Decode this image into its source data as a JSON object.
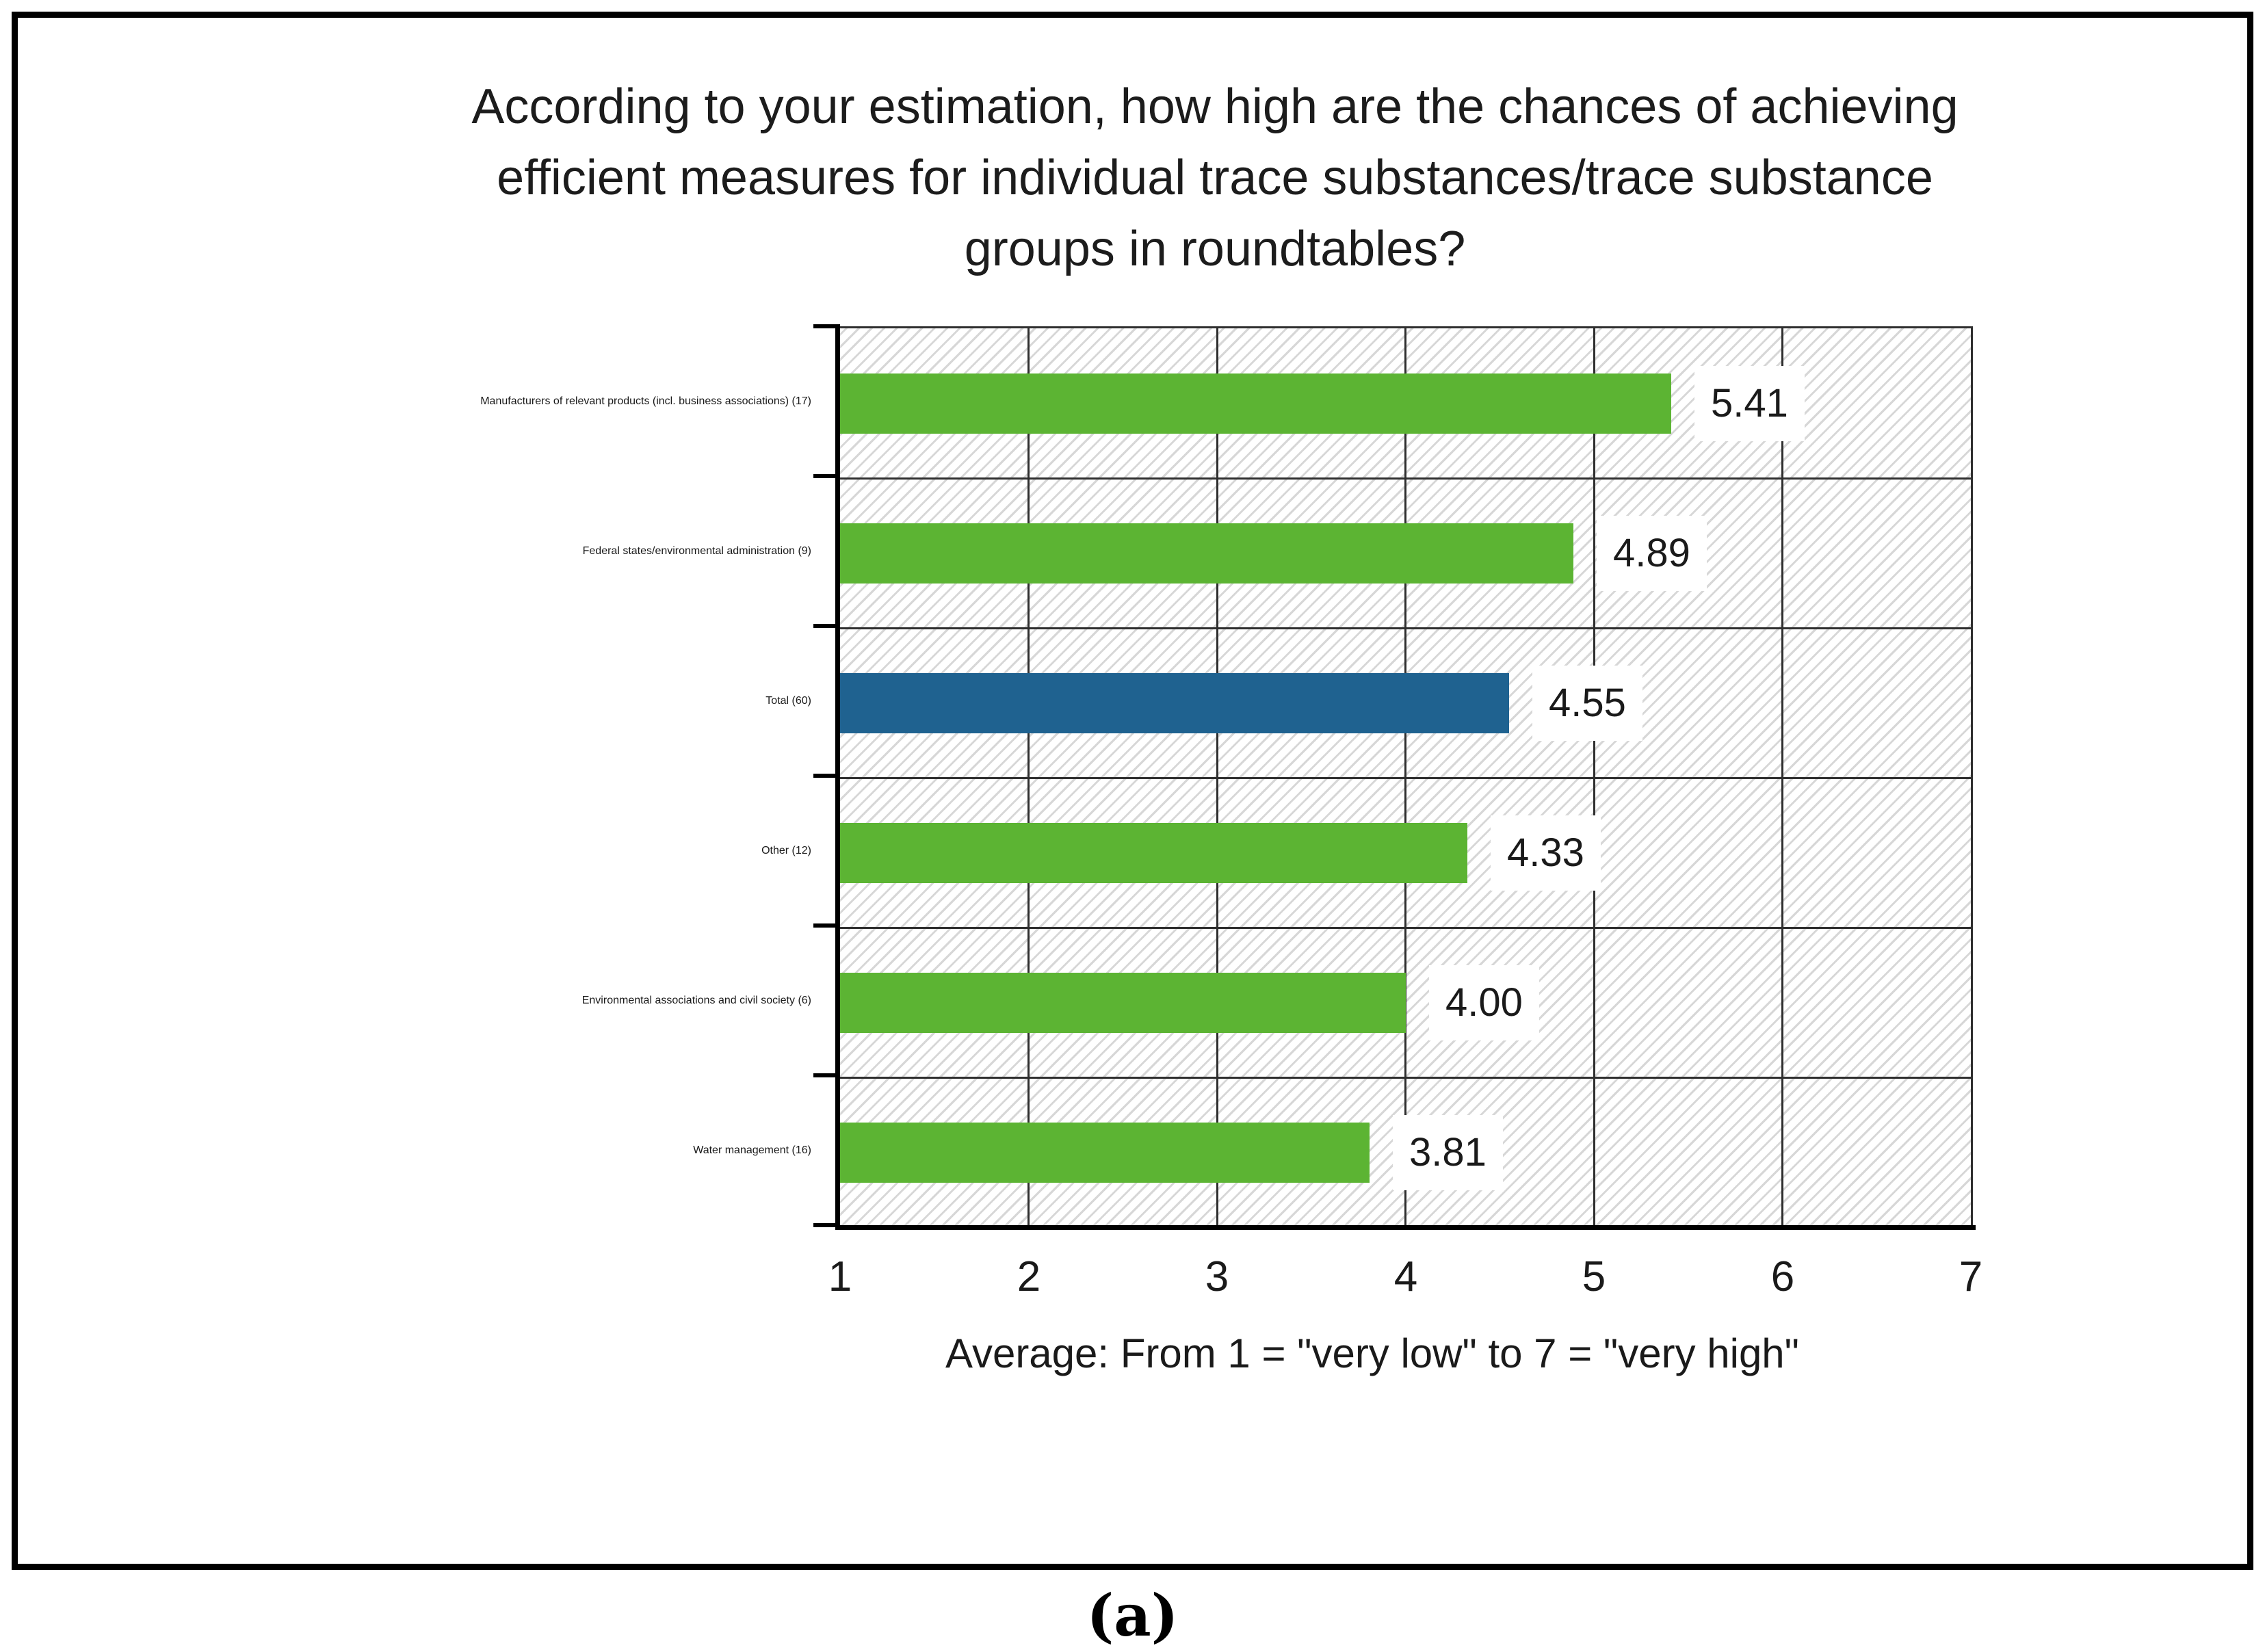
{
  "chart_data": {
    "type": "bar",
    "orientation": "horizontal",
    "title": "According to your estimation, how high are the chances of achieving\nefficient measures for individual trace substances/trace substance\ngroups in roundtables?",
    "xlabel": "Average: From 1 = \"very low\" to 7 = \"very high\"",
    "xlim": [
      1,
      7
    ],
    "x_ticks": [
      1,
      2,
      3,
      4,
      5,
      6,
      7
    ],
    "categories": [
      "Manufacturers of relevant products (incl.\nbusiness associations) (17)",
      "Federal states/environmental\nadministration (9)",
      "Total (60)",
      "Other (12)",
      "Environmental associations and civil\nsociety (6)",
      "Water management (16)"
    ],
    "values": [
      5.41,
      4.89,
      4.55,
      4.33,
      4.0,
      3.81
    ],
    "value_label_format": "2-decimals",
    "highlight_index": 2,
    "colors": {
      "bar_default": "#5cb433",
      "bar_highlight": "#1f6290",
      "grid": "#2f2f2f",
      "axis": "#000000",
      "hatch": "#d7d7d7",
      "value_label_bg": "#ffffff",
      "text": "#1a1a1a"
    },
    "grid": true,
    "legend": false,
    "plot_background": "diagonal-hatch"
  },
  "caption": "(a)"
}
